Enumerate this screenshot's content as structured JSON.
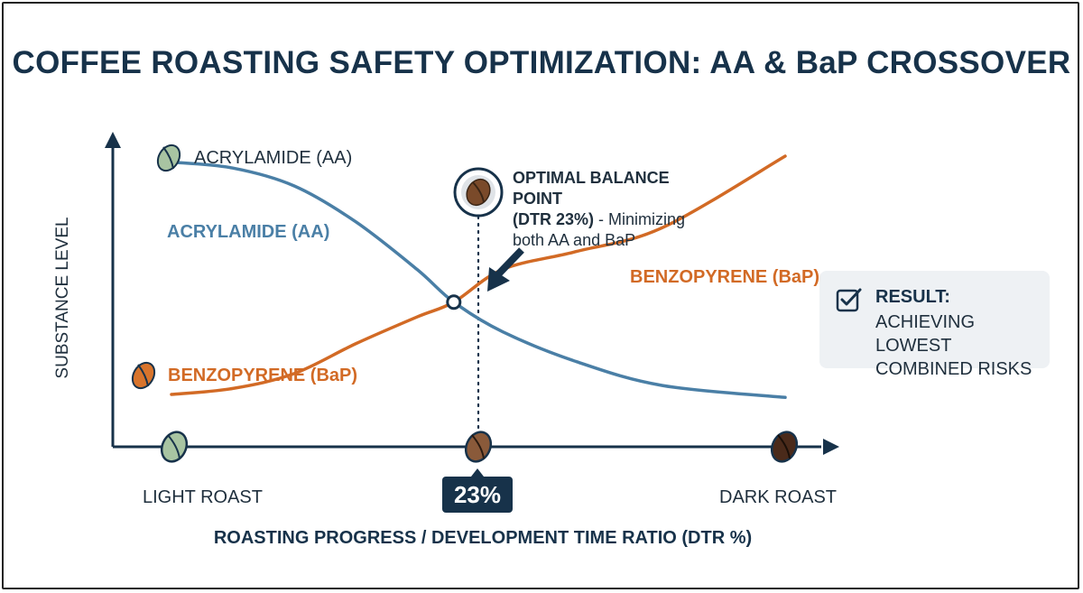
{
  "title": "COFFEE ROASTING SAFETY OPTIMIZATION: AA & BaP CROSSOVER",
  "legend": {
    "aa": "ACRYLAMIDE (AA)",
    "bap": "BENZOPYRENE (BaP)"
  },
  "annotation": {
    "heading": "OPTIMAL BALANCE POINT",
    "subheading": "(DTR 23%)",
    "text": "- Minimizing both AA and BaP"
  },
  "marker": "23%",
  "result": {
    "title": "RESULT:",
    "text": "ACHIEVING LOWEST COMBINED RISKS"
  },
  "colors": {
    "aa": "#4a7fa6",
    "bap": "#d26a25",
    "dark": "#17324a"
  },
  "chart_data": {
    "type": "line",
    "xlabel": "ROASTING PROGRESS / DEVELOPMENT TIME RATIO (DTR %)",
    "ylabel": "SUBSTANCE LEVEL",
    "tick_labels": [
      "LIGHT ROAST",
      "DARK ROAST"
    ],
    "crossover_x": 23,
    "series": [
      {
        "name": "ACRYLAMIDE (AA)",
        "color": "#4a7fa6",
        "x": [
          0,
          5,
          10,
          15,
          20,
          23,
          27,
          33,
          40,
          50
        ],
        "y": [
          0.88,
          0.86,
          0.8,
          0.68,
          0.52,
          0.41,
          0.31,
          0.21,
          0.13,
          0.09
        ]
      },
      {
        "name": "BENZOPYRENE (BaP)",
        "color": "#d26a25",
        "x": [
          0,
          5,
          10,
          15,
          20,
          23,
          27,
          33,
          40,
          50
        ],
        "y": [
          0.1,
          0.12,
          0.17,
          0.27,
          0.36,
          0.41,
          0.52,
          0.58,
          0.66,
          0.9
        ]
      }
    ]
  }
}
